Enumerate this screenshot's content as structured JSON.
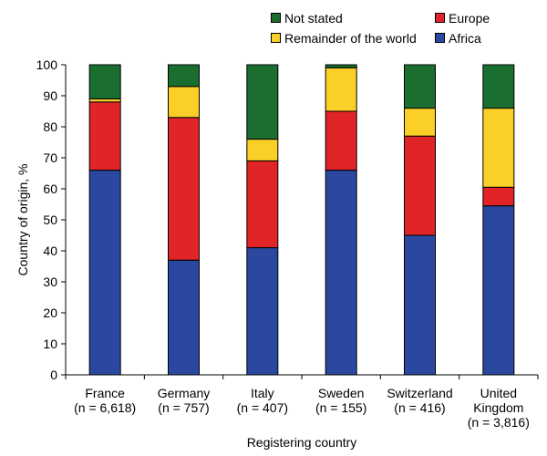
{
  "chart_data": {
    "type": "bar",
    "stacked": true,
    "percent": true,
    "xlabel": "Registering country",
    "ylabel": "Country of origin, %",
    "ylim": [
      0,
      100
    ],
    "yticks": [
      0,
      10,
      20,
      30,
      40,
      50,
      60,
      70,
      80,
      90,
      100
    ],
    "grid": false,
    "legend_position": "top-right",
    "categories": [
      [
        "France",
        "(n = 6,618)"
      ],
      [
        "Germany",
        "(n = 757)"
      ],
      [
        "Italy",
        "(n = 407)"
      ],
      [
        "Sweden",
        "(n = 155)"
      ],
      [
        "Switzerland",
        "(n = 416)"
      ],
      [
        "United",
        "Kingdom",
        "(n = 3,816)"
      ]
    ],
    "series": [
      {
        "name": "Africa",
        "color": "#2a48a0",
        "values": [
          66,
          37,
          41,
          66,
          45,
          54.5
        ]
      },
      {
        "name": "Europe",
        "color": "#e02428",
        "values": [
          22,
          46,
          28,
          19,
          32,
          6
        ]
      },
      {
        "name": "Remainder of the world",
        "color": "#fad028",
        "values": [
          1,
          10,
          7,
          14,
          9,
          25.5
        ]
      },
      {
        "name": "Not stated",
        "color": "#1a6e30",
        "values": [
          11,
          7,
          24,
          1,
          14,
          14
        ]
      }
    ],
    "legend_order": [
      "Not stated",
      "Europe",
      "Remainder of the world",
      "Africa"
    ]
  }
}
